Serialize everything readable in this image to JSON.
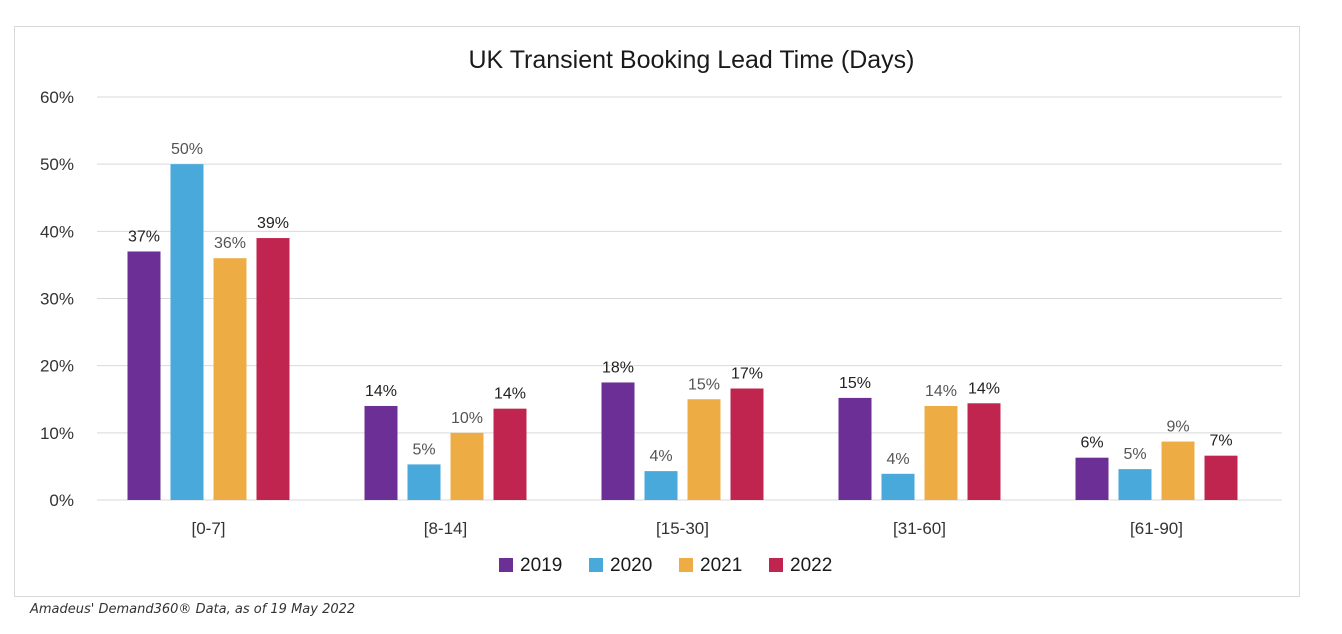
{
  "chart_data": {
    "type": "bar",
    "title": "UK Transient Booking Lead Time (Days)",
    "xlabel": "",
    "ylabel": "",
    "ylim": [
      0,
      60
    ],
    "yticks": [
      "0%",
      "10%",
      "20%",
      "30%",
      "40%",
      "50%",
      "60%"
    ],
    "yticks_values": [
      0,
      10,
      20,
      30,
      40,
      50,
      60
    ],
    "grid": "horizontal",
    "legend_position": "bottom",
    "categories": [
      "[0-7]",
      "[8-14]",
      "[15-30]",
      "[31-60]",
      "[61-90]"
    ],
    "series": [
      {
        "name": "2019",
        "color": "#6b2f95",
        "values": [
          37,
          14,
          17.5,
          15.2,
          6.3
        ],
        "labels": [
          "37%",
          "14%",
          "18%",
          "15%",
          "6%"
        ]
      },
      {
        "name": "2020",
        "color": "#4aa9db",
        "values": [
          50,
          5.3,
          4.3,
          3.9,
          4.6
        ],
        "labels": [
          "50%",
          "5%",
          "4%",
          "4%",
          "5%"
        ]
      },
      {
        "name": "2021",
        "color": "#eeac45",
        "values": [
          36,
          10,
          15,
          14,
          8.7
        ],
        "labels": [
          "36%",
          "10%",
          "15%",
          "14%",
          "9%"
        ]
      },
      {
        "name": "2022",
        "color": "#c0254f",
        "values": [
          39,
          13.6,
          16.6,
          14.4,
          6.6
        ],
        "labels": [
          "39%",
          "14%",
          "17%",
          "14%",
          "7%"
        ]
      }
    ]
  },
  "footnote": "Amadeus' Demand360® Data, as of 19 May 2022",
  "colors": {
    "grid": "#d9d9d9",
    "frame": "#d9d9d9",
    "datalabel_2019": "#222222",
    "datalabel_default": "#555555"
  }
}
